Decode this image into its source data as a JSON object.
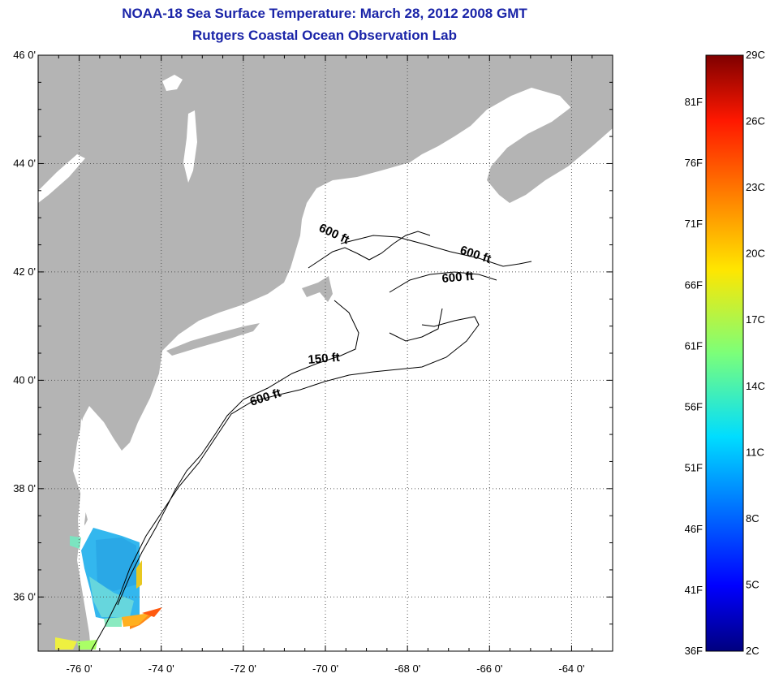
{
  "header": {
    "title": "NOAA-18 Sea Surface Temperature:  March 28, 2012 2008 GMT",
    "subtitle": "Rutgers Coastal Ocean Observation Lab"
  },
  "map": {
    "lat_range": [
      35,
      46
    ],
    "lon_range": [
      -77,
      -63
    ],
    "lat_ticks": [
      {
        "value": 46,
        "label": "46 0'"
      },
      {
        "value": 44,
        "label": "44 0'"
      },
      {
        "value": 42,
        "label": "42 0'"
      },
      {
        "value": 40,
        "label": "40 0'"
      },
      {
        "value": 38,
        "label": "38 0'"
      },
      {
        "value": 36,
        "label": "36 0'"
      }
    ],
    "lon_ticks": [
      {
        "value": -76,
        "label": "-76 0'"
      },
      {
        "value": -74,
        "label": "-74 0'"
      },
      {
        "value": -72,
        "label": "-72 0'"
      },
      {
        "value": -70,
        "label": "-70 0'"
      },
      {
        "value": -68,
        "label": "-68 0'"
      },
      {
        "value": -66,
        "label": "-66 0'"
      },
      {
        "value": -64,
        "label": "-64 0'"
      }
    ],
    "grid": true,
    "land_color": "#b4b4b4",
    "ocean_color": "#ffffff",
    "contour_labels": [
      {
        "text": "600 ft"
      },
      {
        "text": "600 ft"
      },
      {
        "text": "600 ft"
      },
      {
        "text": "150 ft"
      },
      {
        "text": "600 ft"
      }
    ]
  },
  "colorbar": {
    "f_labels": [
      "81F",
      "76F",
      "71F",
      "66F",
      "61F",
      "56F",
      "51F",
      "46F",
      "41F",
      "36F"
    ],
    "c_labels": [
      "29C",
      "26C",
      "23C",
      "20C",
      "17C",
      "14C",
      "11C",
      "8C",
      "5C",
      "2C"
    ]
  }
}
